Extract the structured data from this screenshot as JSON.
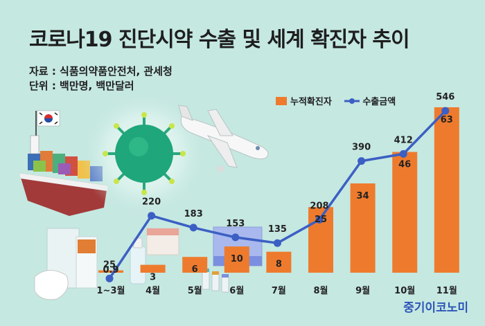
{
  "header": {
    "title": "코로나19 진단시약 수출 및 세계 확진자 추이",
    "source": "자료 : 식품의약품안전처, 관세청",
    "unit": "단위 : 백만명, 백만달러"
  },
  "brand": "중기이코노미",
  "colors": {
    "bar": "#ee7b2d",
    "line": "#3c5fc4",
    "background": "#c5e8e1"
  },
  "chart_data": {
    "type": "bar",
    "categories": [
      "1~3월",
      "4월",
      "5월",
      "6월",
      "7월",
      "8월",
      "9월",
      "10월",
      "11월"
    ],
    "series": [
      {
        "name": "누적확진자",
        "type": "bar",
        "values": [
          0.9,
          3,
          6,
          10,
          8,
          25,
          34,
          46,
          63
        ]
      },
      {
        "name": "수출금액",
        "type": "line",
        "values": [
          25,
          220,
          183,
          153,
          135,
          208,
          390,
          412,
          546
        ]
      }
    ],
    "title": "코로나19 진단시약 수출 및 세계 확진자 추이",
    "xlabel": "",
    "ylabel": "",
    "grid": false,
    "legend": "top-right"
  },
  "illustration_icons": [
    "korea-flag-icon",
    "container-ship-icon",
    "virus-icon",
    "airplane-icon",
    "test-kit-icon",
    "kf94-mask-icon",
    "medicine-vials-icon"
  ]
}
